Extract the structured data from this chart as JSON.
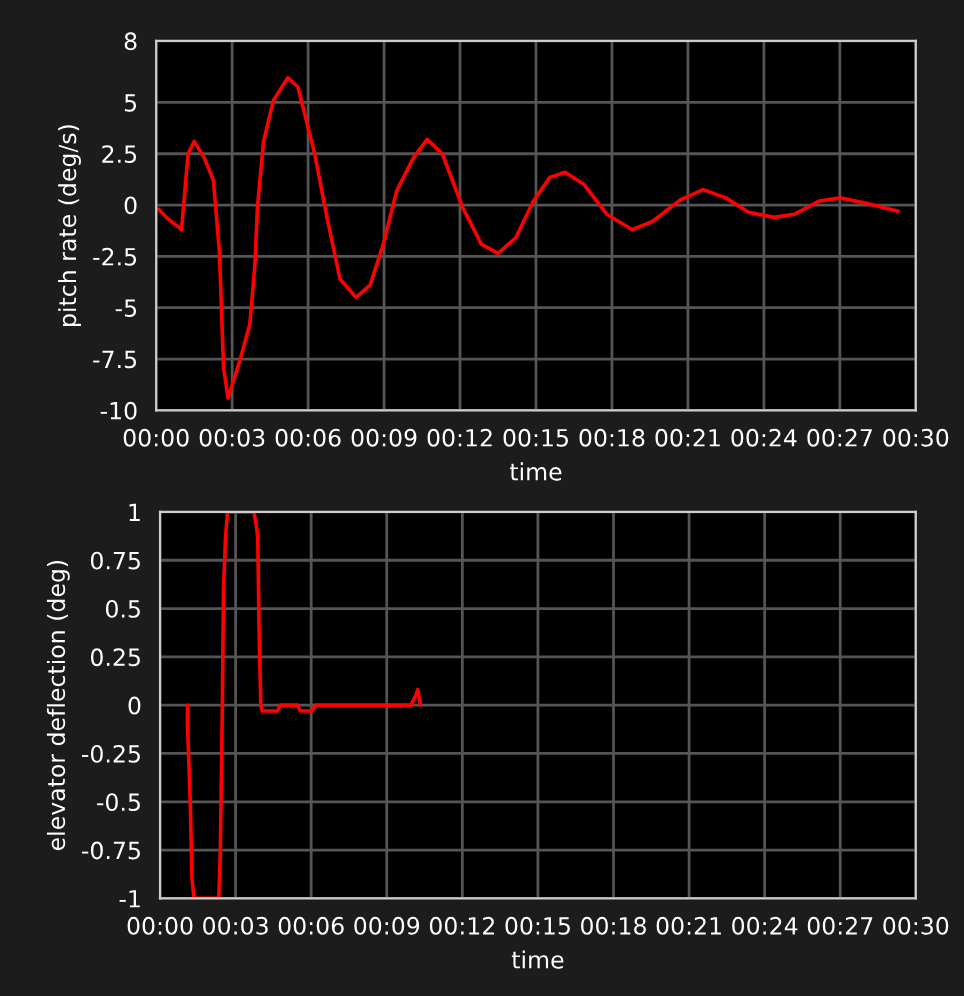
{
  "chart_data": [
    {
      "type": "line",
      "xlabel": "time",
      "ylabel": "pitch rate (deg/s)",
      "grid": true,
      "xlim": [
        0,
        30
      ],
      "ylim": [
        -10,
        8
      ],
      "xticks": [
        {
          "value": 0,
          "label": "00:00"
        },
        {
          "value": 3,
          "label": "00:03"
        },
        {
          "value": 6,
          "label": "00:06"
        },
        {
          "value": 9,
          "label": "00:09"
        },
        {
          "value": 12,
          "label": "00:12"
        },
        {
          "value": 15,
          "label": "00:15"
        },
        {
          "value": 18,
          "label": "00:18"
        },
        {
          "value": 21,
          "label": "00:21"
        },
        {
          "value": 24,
          "label": "00:24"
        },
        {
          "value": 27,
          "label": "00:27"
        },
        {
          "value": 30,
          "label": "00:30"
        }
      ],
      "yticks": [
        8,
        5,
        2.5,
        0,
        -2.5,
        -5,
        -7.5,
        -10
      ],
      "series": [
        {
          "color": "#ff0000",
          "x": [
            0.1,
            0.4,
            1.0,
            1.1,
            1.26,
            1.5,
            1.9,
            2.26,
            2.5,
            2.66,
            2.84,
            3.3,
            3.7,
            3.9,
            4.0,
            4.24,
            4.63,
            5.2,
            5.6,
            6.26,
            6.73,
            7.26,
            7.9,
            8.45,
            8.97,
            9.5,
            10.16,
            10.7,
            11.3,
            12.1,
            12.84,
            13.5,
            14.2,
            14.9,
            15.55,
            16.15,
            16.9,
            17.8,
            18.8,
            19.6,
            20.7,
            21.6,
            22.5,
            23.4,
            24.4,
            25.2,
            26.2,
            27.0,
            28.0,
            29.3
          ],
          "values": [
            -0.2,
            -0.6,
            -1.2,
            0.2,
            2.5,
            3.1,
            2.3,
            1.2,
            -2.3,
            -7.9,
            -9.4,
            -7.6,
            -5.8,
            -2.9,
            -0.1,
            3.1,
            5.1,
            6.2,
            5.75,
            2.5,
            -0.5,
            -3.6,
            -4.5,
            -3.9,
            -1.9,
            0.7,
            2.3,
            3.2,
            2.5,
            -0.1,
            -1.9,
            -2.35,
            -1.6,
            0.2,
            1.35,
            1.6,
            1.0,
            -0.45,
            -1.2,
            -0.8,
            0.25,
            0.75,
            0.35,
            -0.35,
            -0.6,
            -0.45,
            0.2,
            0.35,
            0.1,
            -0.3
          ]
        }
      ]
    },
    {
      "type": "line",
      "xlabel": "time",
      "ylabel": "elevator deflection (deg)",
      "grid": true,
      "xlim": [
        0,
        30
      ],
      "ylim": [
        -1,
        1
      ],
      "xticks": [
        {
          "value": 0,
          "label": "00:00"
        },
        {
          "value": 3,
          "label": "00:03"
        },
        {
          "value": 6,
          "label": "00:06"
        },
        {
          "value": 9,
          "label": "00:09"
        },
        {
          "value": 12,
          "label": "00:12"
        },
        {
          "value": 15,
          "label": "00:15"
        },
        {
          "value": 18,
          "label": "00:18"
        },
        {
          "value": 21,
          "label": "00:21"
        },
        {
          "value": 24,
          "label": "00:24"
        },
        {
          "value": 27,
          "label": "00:27"
        },
        {
          "value": 30,
          "label": "00:30"
        }
      ],
      "yticks": [
        1,
        0.75,
        0.5,
        0.25,
        0,
        -0.25,
        -0.5,
        -0.75,
        -1
      ],
      "series": [
        {
          "color": "#ff0000",
          "x": [
            1.09,
            1.09,
            1.2,
            1.27,
            1.35,
            2.33,
            2.39,
            2.47,
            2.52,
            2.6,
            2.68,
            3.72,
            3.8,
            3.88,
            3.93,
            4.0,
            4.05,
            4.66,
            4.77,
            5.46,
            5.57,
            6.04,
            6.17,
            9.96,
            10.15,
            10.23,
            10.34
          ],
          "values": [
            0,
            -0.1,
            -0.5,
            -0.9,
            -1,
            -1,
            -0.78,
            -0.05,
            0.6,
            0.87,
            1,
            1,
            0.95,
            0.87,
            0.4,
            0,
            -0.03,
            -0.03,
            0,
            0,
            -0.03,
            -0.03,
            0,
            0,
            0.05,
            0.08,
            0
          ]
        }
      ]
    }
  ]
}
